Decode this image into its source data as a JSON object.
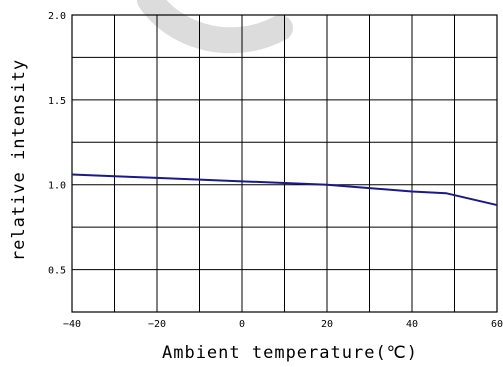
{
  "chart_data": {
    "type": "line",
    "xlabel": "Ambient temperature(℃)",
    "ylabel": "relative intensity",
    "xlim": [
      -40,
      60
    ],
    "ylim": [
      0.25,
      2.0
    ],
    "grid": true,
    "x_ticks": [
      {
        "value": -40,
        "label": "−40"
      },
      {
        "value": -20,
        "label": "−20"
      },
      {
        "value": 0,
        "label": "0"
      },
      {
        "value": 20,
        "label": "20"
      },
      {
        "value": 40,
        "label": "40"
      },
      {
        "value": 60,
        "label": "60"
      }
    ],
    "y_ticks": [
      {
        "value": 0.5,
        "label": "0.5"
      },
      {
        "value": 1.0,
        "label": "1.0"
      },
      {
        "value": 1.5,
        "label": "1.5"
      },
      {
        "value": 2.0,
        "label": "2.0"
      }
    ],
    "x_grid_step": 10,
    "y_grid_step": 0.25,
    "series": [
      {
        "color": "#1a1a8c",
        "x": [
          -40,
          -30,
          -20,
          -10,
          0,
          10,
          20,
          30,
          40,
          48,
          60
        ],
        "y": [
          1.06,
          1.05,
          1.04,
          1.03,
          1.02,
          1.01,
          1.0,
          0.98,
          0.96,
          0.95,
          0.88
        ]
      }
    ]
  }
}
